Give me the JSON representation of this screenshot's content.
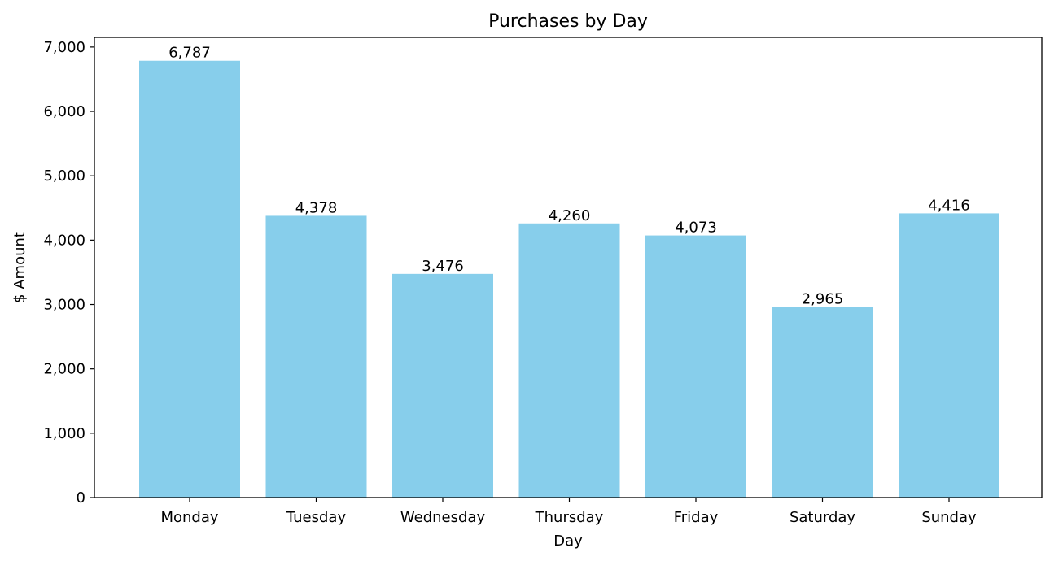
{
  "chart_data": {
    "type": "bar",
    "title": "Purchases by Day",
    "xlabel": "Day",
    "ylabel": "$ Amount",
    "categories": [
      "Monday",
      "Tuesday",
      "Wednesday",
      "Thursday",
      "Friday",
      "Saturday",
      "Sunday"
    ],
    "values": [
      6787,
      4378,
      3476,
      4260,
      4073,
      2965,
      4416
    ],
    "data_labels": [
      "6,787",
      "4,378",
      "3,476",
      "4,260",
      "4,073",
      "2,965",
      "4,416"
    ],
    "ylim": [
      0,
      7150
    ],
    "yticks": [
      0,
      1000,
      2000,
      3000,
      4000,
      5000,
      6000,
      7000
    ],
    "ytick_labels": [
      "0",
      "1,000",
      "2,000",
      "3,000",
      "4,000",
      "5,000",
      "6,000",
      "7,000"
    ],
    "bar_color": "#87CEEB",
    "grid": false,
    "legend": "none"
  }
}
